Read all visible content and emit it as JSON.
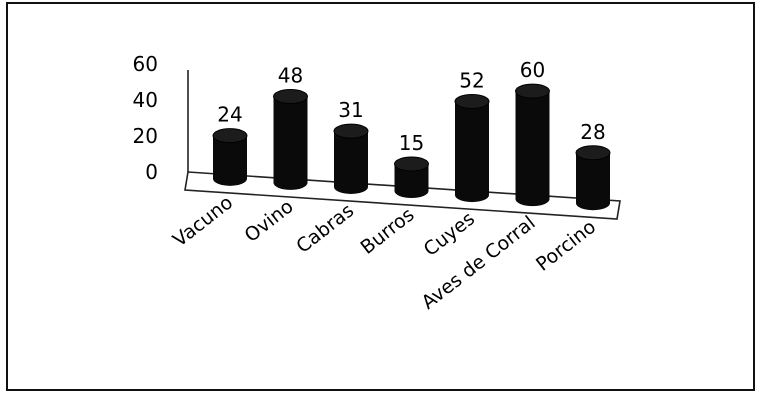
{
  "chart_data": {
    "type": "bar",
    "style": "3d-cylinder",
    "title": "",
    "xlabel": "",
    "ylabel": "",
    "categories": [
      "Vacuno",
      "Ovino",
      "Cabras",
      "Burros",
      "Cuyes",
      "Aves de Corral",
      "Porcino"
    ],
    "values": [
      24,
      48,
      31,
      15,
      52,
      60,
      28
    ],
    "data_labels": [
      "24",
      "48",
      "31",
      "15",
      "52",
      "60",
      "28"
    ],
    "y_ticks": [
      "0",
      "20",
      "40",
      "60"
    ],
    "ylim": [
      0,
      60
    ],
    "grid": false,
    "legend": "none",
    "bar_color": "#0a0a0a"
  }
}
